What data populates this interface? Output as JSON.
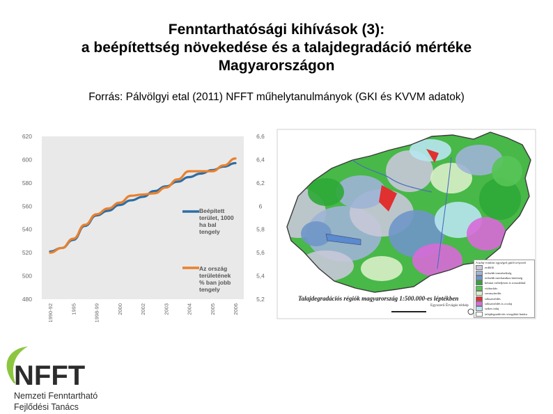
{
  "slide": {
    "title_line1": "Fenntarthatósági kihívások (3):",
    "title_line2": "a beépítettség növekedése és a talajdegradáció mértéke",
    "title_line3": "Magyarországon",
    "source": "Forrás: Pálvölgyi etal (2011) NFFT műhelytanulmányok (GKI és KVVM adatok)"
  },
  "chart_data": {
    "type": "line",
    "categories": [
      "1990-92",
      "1995",
      "1998-99",
      "2000",
      "2002",
      "2003",
      "2004",
      "2005",
      "2006"
    ],
    "x_positions": [
      0,
      1,
      2,
      3,
      4,
      5,
      6,
      7,
      8
    ],
    "ylim_left": [
      480,
      620
    ],
    "yticks_left": [
      "620",
      "600",
      "580",
      "560",
      "540",
      "520",
      "500",
      "480"
    ],
    "ylim_right": [
      5.2,
      6.6
    ],
    "yticks_right": [
      "6,6",
      "6,4",
      "6,2",
      "6",
      "5,8",
      "5,6",
      "5,4",
      "5,2"
    ],
    "series": [
      {
        "name": "Beépített terület, 1000 ha bal tengely",
        "legend_lines": [
          "Beépített",
          "terület, 1000",
          "ha   bal",
          "tengely"
        ],
        "axis": "left",
        "color": "#2e6da4",
        "x": [
          0,
          0.5,
          1,
          1.5,
          2,
          2.5,
          3,
          3.5,
          4,
          4.5,
          5,
          5.5,
          6,
          6.5,
          7,
          7.5,
          8
        ],
        "values": [
          521,
          524,
          531,
          543,
          552,
          556,
          561,
          565,
          568,
          573,
          577,
          581,
          585,
          588,
          591,
          594,
          597
        ]
      },
      {
        "name": "Az ország területének % ban jobb tengely",
        "legend_lines": [
          "Az ország",
          "területének",
          "% ban    jobb",
          "tengely"
        ],
        "axis": "right",
        "color": "#e8812e",
        "x": [
          0,
          0.5,
          1,
          1.5,
          2,
          2.5,
          3,
          3.5,
          4,
          4.5,
          5,
          5.5,
          6,
          6.5,
          7,
          7.5,
          8
        ],
        "values": [
          5.6,
          5.64,
          5.72,
          5.84,
          5.93,
          5.98,
          6.03,
          6.09,
          6.1,
          6.11,
          6.16,
          6.23,
          6.3,
          6.3,
          6.3,
          6.35,
          6.41
        ]
      }
    ]
  },
  "map": {
    "caption": "Talajdegradációs régiók magyarország 1:500.000-es léptékben",
    "subcaption": "Egyszerű Érvágás térkép",
    "legend_title": "A talaj-romlási egységek gátló tényezői",
    "legend": [
      {
        "label": "erdőtlő",
        "color": "#c8c8d8"
      },
      {
        "label": "erősebb terméseliség",
        "color": "#9fb4d6"
      },
      {
        "label": "erősebb mechanikus kitettség",
        "color": "#6f96c8"
      },
      {
        "label": "kémiai erőteljesen is rosszabbul",
        "color": "#2ea836"
      },
      {
        "label": "vízborítás",
        "color": "#56c456"
      },
      {
        "label": "savanyúodás",
        "color": "#d8f0c8"
      },
      {
        "label": "sókszeződés",
        "color": "#e03030"
      },
      {
        "label": "sókszeződés is a talaj",
        "color": "#d86ad8"
      },
      {
        "label": "szikes talaj",
        "color": "#b8e6f0"
      },
      {
        "label": "talajdegradációs vizsgálati határa",
        "color": "#ffffff"
      }
    ]
  },
  "logo": {
    "letters": "NFFT",
    "line1": "Nemzeti Fenntartható",
    "line2": "Fejlődési Tanács",
    "accent_color": "#8cc63f"
  }
}
